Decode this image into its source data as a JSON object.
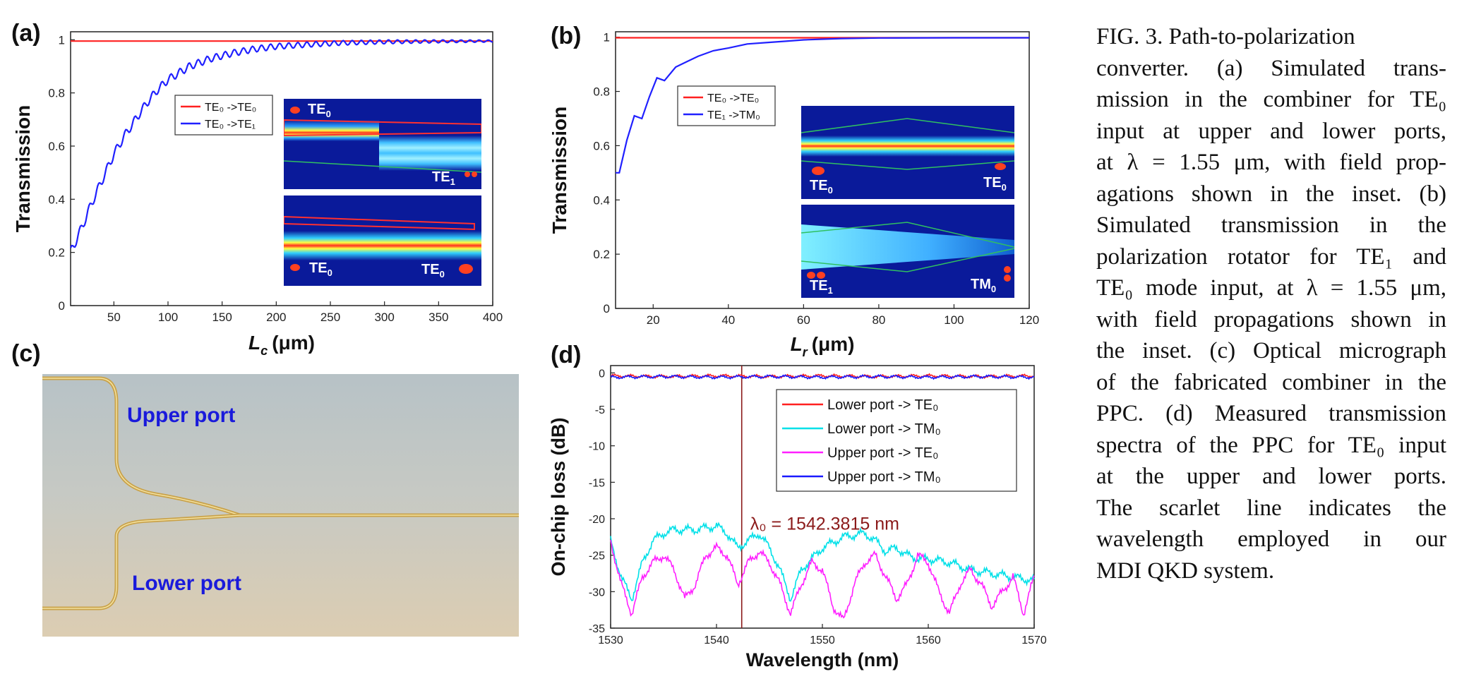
{
  "panels": {
    "a": "(a)",
    "b": "(b)",
    "c": "(c)",
    "d": "(d)"
  },
  "micrograph": {
    "upper_label": "Upper port",
    "lower_label": "Lower port"
  },
  "insets": {
    "a_top_left": "TE",
    "a_top_left_sub": "0",
    "a_top_right": "TE",
    "a_top_right_sub": "1",
    "a_bot_left": "TE",
    "a_bot_left_sub": "0",
    "a_bot_right": "TE",
    "a_bot_right_sub": "0",
    "b_top_left": "TE",
    "b_top_left_sub": "0",
    "b_top_right": "TE",
    "b_top_right_sub": "0",
    "b_bot_left": "TE",
    "b_bot_left_sub": "1",
    "b_bot_right": "TM",
    "b_bot_right_sub": "0"
  },
  "caption_lines": [
    "FIG. 3.   Path-to-polarization",
    "converter. (a) Simulated trans-",
    "mission in the combiner for TE₀",
    "input at upper and lower ports,",
    "at λ = 1.55 μm, with field prop-",
    "agations shown in the inset. (b)",
    "Simulated transmission in the",
    "polarization rotator for TE₁ and",
    "TE₀ mode input, at λ = 1.55 μm,",
    "with field propagations shown in",
    "the inset. (c) Optical micrograph",
    "of the fabricated combiner in the",
    "PPC. (d) Measured transmission",
    "spectra of the PPC for TE₀ input",
    "at the upper and lower ports.",
    "The scarlet line indicates the",
    "wavelength employed in our",
    "MDI QKD system."
  ],
  "chart_data": [
    {
      "id": "a",
      "type": "line",
      "xlabel": "L",
      "xlabel_sub": "c",
      "xlabel_unit": "(μm)",
      "ylabel": "Transmission",
      "xlim": [
        10,
        400
      ],
      "ylim": [
        0,
        1.03
      ],
      "xticks": [
        50,
        100,
        150,
        200,
        250,
        300,
        350,
        400
      ],
      "yticks": [
        0,
        0.2,
        0.4,
        0.6,
        0.8,
        1
      ],
      "ytick_labels": [
        "0",
        "0.2",
        "0.4",
        "0.6",
        "0.8",
        "1"
      ],
      "legend": [
        {
          "label": "TE₀ ->TE₀",
          "color": "#ff2020"
        },
        {
          "label": "TE₀ ->TE₁",
          "color": "#2020ff"
        }
      ],
      "series": [
        {
          "name": "TE₀ ->TE₀",
          "color": "#ff2020",
          "x": [
            10,
            400
          ],
          "y": [
            0.995,
            0.995
          ]
        },
        {
          "name": "TE₀ ->TE₁",
          "color": "#2020ff",
          "x": [
            10,
            20,
            30,
            40,
            50,
            60,
            70,
            80,
            90,
            100,
            120,
            140,
            160,
            180,
            200,
            230,
            260,
            300,
            350,
            400
          ],
          "y": [
            0.2,
            0.29,
            0.39,
            0.48,
            0.57,
            0.64,
            0.7,
            0.76,
            0.81,
            0.85,
            0.9,
            0.93,
            0.95,
            0.965,
            0.975,
            0.982,
            0.988,
            0.992,
            0.994,
            0.995
          ],
          "ripple": true
        }
      ]
    },
    {
      "id": "b",
      "type": "line",
      "xlabel": "L",
      "xlabel_sub": "r",
      "xlabel_unit": "(μm)",
      "ylabel": "Transmission",
      "xlim": [
        10,
        120
      ],
      "ylim": [
        0,
        1.02
      ],
      "xticks": [
        20,
        40,
        60,
        80,
        100,
        120
      ],
      "yticks": [
        0,
        0.2,
        0.4,
        0.6,
        0.8,
        1
      ],
      "ytick_labels": [
        "0",
        "0.2",
        "0.4",
        "0.6",
        "0.8",
        "1"
      ],
      "legend": [
        {
          "label": "TE₀ ->TE₀",
          "color": "#ff2020"
        },
        {
          "label": "TE₁ ->TM₀",
          "color": "#2020ff"
        }
      ],
      "series": [
        {
          "name": "TE₀ ->TE₀",
          "color": "#ff2020",
          "x": [
            10,
            120
          ],
          "y": [
            0.998,
            0.998
          ]
        },
        {
          "name": "TE₁ ->TM₀",
          "color": "#2020ff",
          "x": [
            10,
            11,
            13,
            15,
            17,
            19,
            21,
            23,
            26,
            29,
            32,
            36,
            40,
            45,
            50,
            55,
            60,
            70,
            80,
            100,
            120
          ],
          "y": [
            0.5,
            0.5,
            0.62,
            0.71,
            0.7,
            0.78,
            0.85,
            0.84,
            0.89,
            0.91,
            0.93,
            0.95,
            0.96,
            0.975,
            0.98,
            0.985,
            0.99,
            0.995,
            0.997,
            0.998,
            0.998
          ]
        }
      ]
    },
    {
      "id": "d",
      "type": "line",
      "xlabel": "Wavelength (nm)",
      "ylabel": "On-chip loss (dB)",
      "xlim": [
        1530,
        1570
      ],
      "ylim": [
        -35,
        1
      ],
      "xticks": [
        1530,
        1540,
        1550,
        1560,
        1570
      ],
      "yticks": [
        0,
        -5,
        -10,
        -15,
        -20,
        -25,
        -30,
        -35
      ],
      "marker_line": {
        "x": 1542.3815,
        "color": "#8b1a1a"
      },
      "annotation": "λ₀ =  1542.3815 nm",
      "legend": [
        {
          "label": "Lower port -> TE₀",
          "color": "#ff2020"
        },
        {
          "label": "Lower port -> TM₀",
          "color": "#00e0e8"
        },
        {
          "label": "Upper port -> TE₀",
          "color": "#ff20ff"
        },
        {
          "label": "Upper port -> TM₀",
          "color": "#1a1aff"
        }
      ],
      "series": [
        {
          "name": "Lower port -> TE₀",
          "color": "#ff2020",
          "x": [
            1530,
            1535,
            1540,
            1545,
            1550,
            1555,
            1560,
            1565,
            1570
          ],
          "y": [
            -0.4,
            -0.5,
            -0.4,
            -0.5,
            -0.4,
            -0.5,
            -0.4,
            -0.5,
            -0.4
          ]
        },
        {
          "name": "Upper port -> TM₀",
          "color": "#1a1aff",
          "x": [
            1530,
            1535,
            1540,
            1545,
            1550,
            1555,
            1560,
            1565,
            1570
          ],
          "y": [
            -0.6,
            -0.5,
            -0.6,
            -0.5,
            -0.6,
            -0.5,
            -0.6,
            -0.5,
            -0.6
          ]
        },
        {
          "name": "Lower port -> TM₀",
          "color": "#00e0e8",
          "x": [
            1530,
            1531,
            1532,
            1533,
            1534,
            1535,
            1536,
            1538,
            1540,
            1541,
            1542,
            1543,
            1544,
            1545,
            1546,
            1547,
            1548,
            1550,
            1552,
            1554,
            1555,
            1556,
            1557,
            1558,
            1559,
            1560,
            1562,
            1564,
            1566,
            1568,
            1570
          ],
          "y": [
            -23,
            -28,
            -31,
            -26,
            -23,
            -22,
            -21.5,
            -21.5,
            -21,
            -22,
            -24,
            -23,
            -22,
            -24,
            -27,
            -31,
            -27,
            -24,
            -22.5,
            -22,
            -23,
            -24.5,
            -24,
            -25,
            -25.5,
            -25.5,
            -26,
            -27,
            -27.5,
            -28,
            -28.5
          ]
        },
        {
          "name": "Upper port -> TE₀",
          "color": "#ff20ff",
          "x": [
            1530,
            1531,
            1532,
            1533,
            1534,
            1535,
            1536,
            1537,
            1538,
            1539,
            1540,
            1541,
            1542,
            1543,
            1544,
            1545,
            1546,
            1547,
            1548,
            1549,
            1550,
            1551,
            1552,
            1553,
            1554,
            1555,
            1556,
            1557,
            1558,
            1559,
            1560,
            1561,
            1562,
            1563,
            1564,
            1565,
            1566,
            1567,
            1568,
            1569,
            1570
          ],
          "y": [
            -23,
            -29,
            -33,
            -28,
            -26,
            -25,
            -27,
            -31,
            -29,
            -25,
            -24,
            -25,
            -29,
            -26,
            -24.5,
            -26,
            -29,
            -33,
            -29,
            -26,
            -27,
            -32,
            -34,
            -29,
            -26,
            -25,
            -28,
            -31,
            -29,
            -25,
            -26,
            -30,
            -33,
            -29,
            -27,
            -29,
            -32,
            -30,
            -28,
            -33,
            -28
          ]
        }
      ]
    }
  ]
}
